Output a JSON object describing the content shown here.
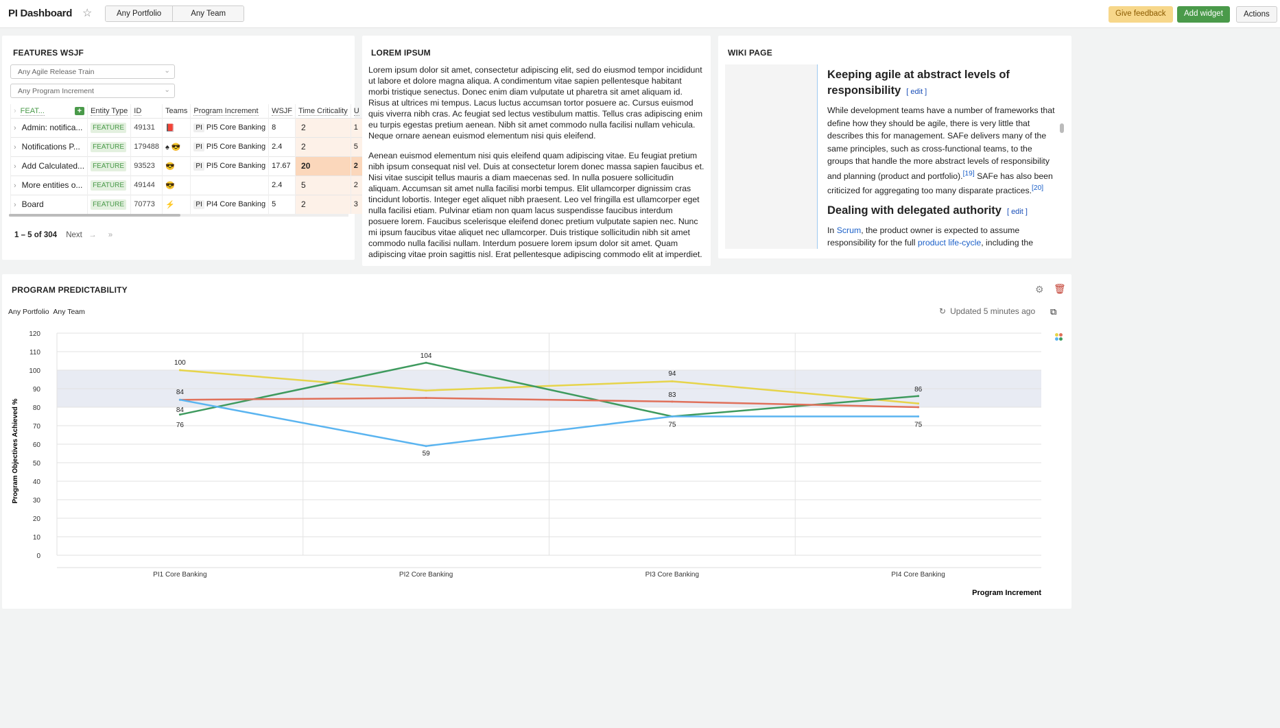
{
  "header": {
    "title": "PI Dashboard",
    "filters": [
      "Any Portfolio",
      "Any Team"
    ],
    "give_feedback": "Give feedback",
    "add_widget": "Add widget",
    "actions": "Actions"
  },
  "features": {
    "title": "FEATURES WSJF",
    "release_train": "Any Agile Release Train",
    "program_increment": "Any Program Increment",
    "columns": [
      "FEAT...",
      "Entity Type",
      "ID",
      "Teams",
      "Program Increment",
      "WSJF",
      "Time Criticality",
      "U"
    ],
    "rows": [
      {
        "name": "Admin: notifica...",
        "type": "FEATURE",
        "id": "49131",
        "teams": "📕",
        "pi": "PI5 Core Banking",
        "wsjf": "8",
        "tc": "2",
        "u": "1"
      },
      {
        "name": "Notifications P...",
        "type": "FEATURE",
        "id": "179488",
        "teams": "♠ 😎",
        "pi": "PI5 Core Banking",
        "wsjf": "2.4",
        "tc": "2",
        "u": "5"
      },
      {
        "name": "Add Calculated...",
        "type": "FEATURE",
        "id": "93523",
        "teams": "😎",
        "pi": "PI5 Core Banking",
        "wsjf": "17.67",
        "tc": "20",
        "u": "2"
      },
      {
        "name": "More entities o...",
        "type": "FEATURE",
        "id": "49144",
        "teams": "😎",
        "pi": "",
        "wsjf": "2.4",
        "tc": "5",
        "u": "2"
      },
      {
        "name": "Board",
        "type": "FEATURE",
        "id": "70773",
        "teams": "⚡",
        "pi": "PI4 Core Banking",
        "wsjf": "5",
        "tc": "2",
        "u": "3"
      }
    ],
    "pi_badge": "PI",
    "pagination": {
      "range": "1 – 5",
      "of": "of 304",
      "next": "Next"
    }
  },
  "lorem": {
    "title": "LOREM IPSUM",
    "paragraphs": [
      "Lorem ipsum dolor sit amet, consectetur adipiscing elit, sed do eiusmod tempor incididunt ut labore et dolore magna aliqua. A condimentum vitae sapien pellentesque habitant morbi tristique senectus. Donec enim diam vulputate ut pharetra sit amet aliquam id. Risus at ultrices mi tempus. Lacus luctus accumsan tortor posuere ac. Cursus euismod quis viverra nibh cras. Ac feugiat sed lectus vestibulum mattis. Tellus cras adipiscing enim eu turpis egestas pretium aenean. Nibh sit amet commodo nulla facilisi nullam vehicula. Neque ornare aenean euismod elementum nisi quis eleifend.",
      "Aenean euismod elementum nisi quis eleifend quam adipiscing vitae. Eu feugiat pretium nibh ipsum consequat nisl vel. Duis at consectetur lorem donec massa sapien faucibus et. Nisi vitae suscipit tellus mauris a diam maecenas sed. In nulla posuere sollicitudin aliquam. Accumsan sit amet nulla facilisi morbi tempus. Elit ullamcorper dignissim cras tincidunt lobortis. Integer eget aliquet nibh praesent. Leo vel fringilla est ullamcorper eget nulla facilisi etiam. Pulvinar etiam non quam lacus suspendisse faucibus interdum posuere lorem. Faucibus scelerisque eleifend donec pretium vulputate sapien nec. Nunc mi ipsum faucibus vitae aliquet nec ullamcorper. Duis tristique sollicitudin nibh sit amet commodo nulla facilisi nullam. Interdum posuere lorem ipsum dolor sit amet. Quam adipiscing vitae proin sagittis nisl. Erat pellentesque adipiscing commodo elit at imperdiet."
    ]
  },
  "wiki": {
    "title": "WIKI PAGE",
    "h1": "Keeping agile at abstract levels of responsibility",
    "edit": "[ edit ]",
    "p1": "While development teams have a number of frameworks that define how they should be agile, there is very little that describes this for management. SAFe delivers many of the same principles, such as cross-functional teams, to the groups that handle the more abstract levels of responsibility and planning (product and portfolio).",
    "ref1": "[19]",
    "p1b": " SAFe has also been criticized for aggregating too many disparate practices.",
    "ref2": "[20]",
    "h2": "Dealing with delegated authority",
    "p2a": "In ",
    "link1": "Scrum",
    "p2b": ", the product owner is expected to assume responsibility for the full ",
    "link2": "product life-cycle",
    "p2c": ", including the"
  },
  "predictability": {
    "title": "PROGRAM PREDICTABILITY",
    "filters": [
      "Any Portfolio",
      "Any Team"
    ],
    "updated": "Updated 5 minutes ago"
  },
  "chart_data": {
    "type": "line",
    "title": "",
    "xlabel": "Program Increment",
    "ylabel": "Program Objectives Achieved %",
    "ylim": [
      0,
      120
    ],
    "yticks": [
      0,
      10,
      20,
      30,
      40,
      50,
      60,
      70,
      80,
      90,
      100,
      110,
      120
    ],
    "band": [
      80,
      100
    ],
    "categories": [
      "PI1 Core Banking",
      "PI2 Core Banking",
      "PI3 Core Banking",
      "PI4 Core Banking"
    ],
    "series": [
      {
        "name": "Yellow",
        "color": "#e6d44a",
        "values": [
          100,
          89,
          94,
          82
        ],
        "labels": [
          "100",
          "",
          "94",
          ""
        ]
      },
      {
        "name": "Green",
        "color": "#3e9a5e",
        "values": [
          76,
          104,
          75,
          86
        ],
        "labels": [
          "76",
          "104",
          "",
          "86"
        ]
      },
      {
        "name": "Red",
        "color": "#e0705a",
        "values": [
          84,
          85,
          83,
          80
        ],
        "labels": [
          "84",
          "",
          "83",
          ""
        ]
      },
      {
        "name": "Blue",
        "color": "#5ab4f0",
        "values": [
          84,
          59,
          75,
          75
        ],
        "labels": [
          "84",
          "59",
          "75",
          "75"
        ]
      }
    ]
  }
}
